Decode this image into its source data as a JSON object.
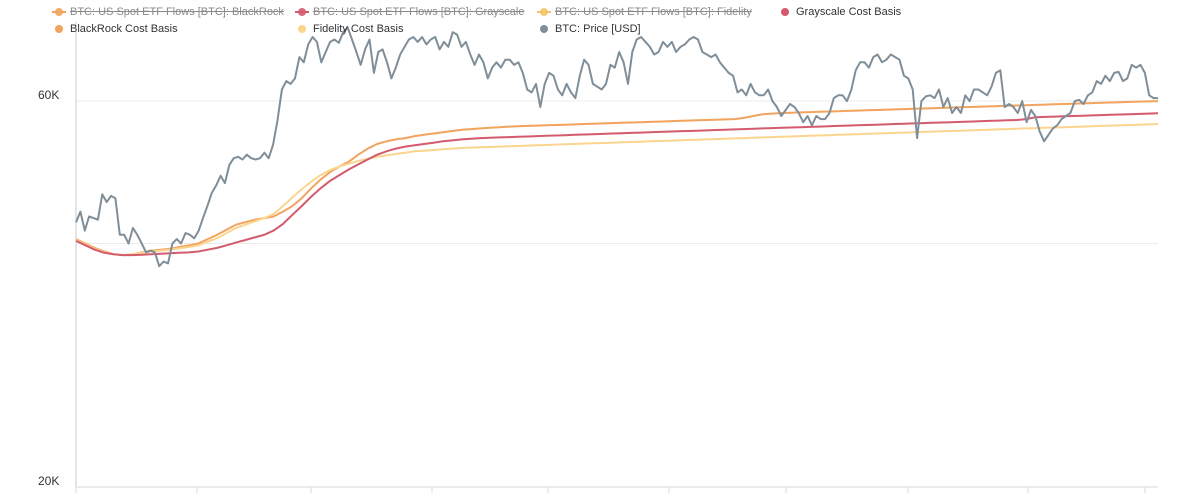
{
  "legend": {
    "items": [
      {
        "label": "BTC: US Spot ETF Flows [BTC]: BlackRock",
        "color": "#f2a35e",
        "hidden": true
      },
      {
        "label": "BTC: US Spot ETF Flows [BTC]: Grayscale",
        "color": "#d45a6e",
        "hidden": true
      },
      {
        "label": "BTC: US Spot ETF Flows [BTC]: Fidelity",
        "color": "#f4c56a",
        "hidden": true
      },
      {
        "label": "Grayscale Cost Basis",
        "color": "#d45a6e",
        "hidden": false
      },
      {
        "label": "BlackRock Cost Basis",
        "color": "#f2a35e",
        "hidden": false
      },
      {
        "label": "Fidelity Cost Basis",
        "color": "#fbd58e",
        "hidden": false
      },
      {
        "label": "BTC: Price [USD]",
        "color": "#7f8e98",
        "hidden": false
      }
    ]
  },
  "chart_data": {
    "type": "line",
    "y_scale": "log",
    "ylim": [
      20000,
      80000
    ],
    "y_tick_labels": [
      {
        "value": 60000,
        "label": "60K"
      },
      {
        "value": 20000,
        "label": "20K"
      }
    ],
    "gridlines_y": [
      60000,
      40000
    ],
    "grid": true,
    "x_tick_count": 9,
    "series": [
      {
        "name": "BTC: Price [USD]",
        "color": "#7f8e98",
        "width": 2,
        "values": [
          42500,
          43800,
          41500,
          43200,
          43000,
          42800,
          46000,
          45000,
          45800,
          45500,
          41000,
          41000,
          40000,
          41800,
          41000,
          40000,
          39000,
          39200,
          39000,
          37500,
          38000,
          37800,
          40000,
          40500,
          40000,
          41200,
          41000,
          40600,
          41500,
          43000,
          44500,
          46200,
          47200,
          48500,
          47500,
          50000,
          51000,
          51200,
          50800,
          51500,
          51000,
          50800,
          51000,
          51800,
          51000,
          53000,
          56800,
          62000,
          63500,
          63000,
          64000,
          68000,
          67000,
          70500,
          72000,
          71000,
          67000,
          69000,
          71000,
          71500,
          70800,
          73000,
          74000,
          71500,
          69000,
          66500,
          69500,
          71500,
          65000,
          69000,
          69500,
          67000,
          64000,
          66000,
          68500,
          70000,
          71500,
          72000,
          71000,
          72000,
          70500,
          71500,
          72000,
          69500,
          71000,
          70000,
          73000,
          72500,
          70000,
          71000,
          68500,
          66500,
          68500,
          67000,
          64000,
          66000,
          67000,
          66000,
          67500,
          67500,
          66500,
          67000,
          65000,
          62000,
          61500,
          63000,
          59000,
          63000,
          65000,
          64500,
          62000,
          61000,
          63000,
          61500,
          60500,
          64500,
          67500,
          66500,
          63000,
          62500,
          62000,
          63000,
          66500,
          66000,
          69000,
          67000,
          63000,
          69000,
          71500,
          72000,
          71000,
          70000,
          68500,
          69000,
          71000,
          70000,
          71000,
          69000,
          70000,
          70500,
          71500,
          72000,
          71500,
          69000,
          68500,
          68000,
          68500,
          67000,
          66000,
          65000,
          64500,
          61500,
          62000,
          61000,
          63000,
          61500,
          61000,
          61000,
          62000,
          60000,
          59000,
          57500,
          58500,
          59500,
          59000,
          58000,
          56500,
          57500,
          56000,
          57500,
          57000,
          57000,
          58000,
          60500,
          61000,
          61000,
          60000,
          62000,
          65500,
          67000,
          67000,
          66000,
          68000,
          68500,
          67000,
          67500,
          68500,
          68000,
          67500,
          64500,
          64000,
          62000,
          54000,
          60000,
          60800,
          61000,
          60500,
          62000,
          59000,
          60500,
          58000,
          59000,
          58000,
          61000,
          60000,
          62000,
          62000,
          61500,
          61000,
          62500,
          65000,
          65500,
          59000,
          59500,
          59000,
          58000,
          60000,
          56500,
          58500,
          57500,
          55000,
          53500,
          54500,
          55500,
          56000,
          57000,
          57500,
          58000,
          60000,
          60200,
          59500,
          61000,
          61500,
          63500,
          63000,
          64500,
          63500,
          65000,
          65200,
          63500,
          64000,
          66500,
          66000,
          66500,
          65000,
          61000,
          60500,
          60500
        ]
      },
      {
        "name": "BlackRock Cost Basis",
        "color": "#f2a35e",
        "width": 2,
        "values": [
          40500,
          40000,
          39500,
          39100,
          38800,
          38700,
          38800,
          39000,
          39200,
          39300,
          39400,
          39600,
          39800,
          40000,
          40500,
          41000,
          41600,
          42200,
          42500,
          42800,
          43000,
          43200,
          43800,
          44500,
          45500,
          46800,
          48000,
          49000,
          49800,
          50500,
          51500,
          52400,
          53100,
          53500,
          53800,
          54000,
          54300,
          54500,
          54700,
          54900,
          55100,
          55300,
          55400,
          55500,
          55600,
          55700,
          55800,
          55850,
          55900,
          55950,
          56000,
          56050,
          56100,
          56150,
          56200,
          56250,
          56300,
          56350,
          56400,
          56450,
          56500,
          56550,
          56600,
          56650,
          56700,
          56750,
          56800,
          56850,
          56900,
          56950,
          57000,
          57200,
          57500,
          57800,
          57900,
          58000,
          58050,
          58100,
          58150,
          58200,
          58250,
          58300,
          58350,
          58400,
          58450,
          58500,
          58550,
          58600,
          58650,
          58700,
          58750,
          58800,
          58850,
          58900,
          58950,
          59000,
          59050,
          59100,
          59150,
          59200,
          59250,
          59300,
          59350,
          59400,
          59450,
          59500,
          59550,
          59600,
          59650,
          59700,
          59750,
          59800,
          59850,
          59900,
          59950,
          60000
        ]
      },
      {
        "name": "Fidelity Cost Basis",
        "color": "#fbd58e",
        "width": 2,
        "values": [
          40400,
          39900,
          39400,
          39000,
          38800,
          38700,
          38800,
          38950,
          39100,
          39200,
          39300,
          39450,
          39600,
          39800,
          40200,
          40600,
          41200,
          41800,
          42200,
          42600,
          43000,
          43500,
          44500,
          45600,
          46700,
          47700,
          48600,
          49300,
          49800,
          50200,
          50600,
          50900,
          51200,
          51400,
          51600,
          51800,
          52000,
          52100,
          52200,
          52300,
          52400,
          52500,
          52550,
          52600,
          52650,
          52700,
          52750,
          52800,
          52850,
          52900,
          52950,
          53000,
          53050,
          53100,
          53150,
          53200,
          53250,
          53300,
          53350,
          53400,
          53450,
          53500,
          53550,
          53600,
          53650,
          53700,
          53750,
          53800,
          53850,
          53900,
          53950,
          54000,
          54050,
          54100,
          54150,
          54200,
          54250,
          54300,
          54350,
          54400,
          54450,
          54500,
          54550,
          54600,
          54650,
          54700,
          54750,
          54800,
          54850,
          54900,
          54950,
          55000,
          55050,
          55100,
          55150,
          55200,
          55250,
          55300,
          55350,
          55400,
          55450,
          55500,
          55550,
          55600,
          55650,
          55700,
          55750,
          55800,
          55850,
          55900,
          55950,
          56000,
          56050,
          56100,
          56150,
          56200
        ]
      },
      {
        "name": "Grayscale Cost Basis",
        "color": "#d45a6e",
        "width": 2,
        "values": [
          40300,
          39800,
          39300,
          38950,
          38800,
          38700,
          38700,
          38750,
          38800,
          38850,
          38900,
          38950,
          39000,
          39100,
          39300,
          39500,
          39800,
          40100,
          40400,
          40700,
          41000,
          41500,
          42300,
          43400,
          44500,
          45700,
          46800,
          47800,
          48600,
          49400,
          50100,
          50800,
          51500,
          52000,
          52400,
          52700,
          52900,
          53100,
          53300,
          53500,
          53650,
          53800,
          53900,
          54000,
          54050,
          54100,
          54150,
          54200,
          54250,
          54300,
          54350,
          54400,
          54450,
          54500,
          54550,
          54600,
          54650,
          54700,
          54750,
          54800,
          54850,
          54900,
          54950,
          55000,
          55050,
          55100,
          55150,
          55200,
          55250,
          55300,
          55350,
          55400,
          55450,
          55500,
          55550,
          55600,
          55650,
          55700,
          55750,
          55800,
          55850,
          55900,
          55950,
          56000,
          56050,
          56100,
          56150,
          56200,
          56250,
          56300,
          56350,
          56400,
          56450,
          56500,
          56550,
          56600,
          56650,
          56700,
          56750,
          56800,
          56850,
          57000,
          57300,
          57350,
          57400,
          57450,
          57500,
          57550,
          57600,
          57650,
          57700,
          57750,
          57800,
          57850,
          57900,
          57950
        ]
      }
    ]
  }
}
